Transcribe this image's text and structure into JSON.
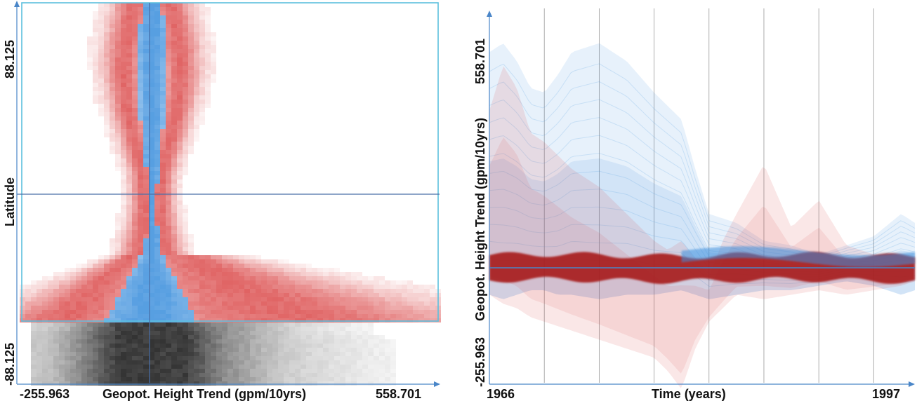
{
  "chart_data": [
    {
      "type": "heatmap",
      "title": "",
      "xlabel": "Geopot. Height Trend (gpm/10yrs)",
      "ylabel": "Latitude",
      "xlim": [
        -255.963,
        558.701
      ],
      "ylim": [
        -88.125,
        88.125
      ],
      "x_tick_labels": [
        "-255.963",
        "558.701"
      ],
      "y_tick_labels": [
        "-88.125",
        "88.125"
      ],
      "reference_line_latitude": 0,
      "reference_line_trend": 0,
      "selection_latitude_range": [
        -88.125,
        88.125
      ],
      "colors": {
        "selected_a": "#d83c3c",
        "selected_b": "#3a8edc",
        "context": "#555555",
        "frame": "#5bc0de",
        "axis": "#4a86c8"
      }
    },
    {
      "type": "line",
      "title": "",
      "xlabel": "Time (years)",
      "ylabel": "Geopot. Height Trend (gpm/10yrs)",
      "xlim": [
        1966,
        1997
      ],
      "ylim": [
        -255.963,
        558.701
      ],
      "x_tick_labels": [
        "1966",
        "1997"
      ],
      "y_tick_labels": [
        "-255.963",
        "558.701"
      ],
      "vertical_grid_years": [
        1966,
        1970,
        1974,
        1978,
        1982,
        1986,
        1990,
        1994
      ],
      "reference_line_value": 0,
      "series": [
        {
          "color": "#3a8edc",
          "x": [
            1966,
            1967,
            1968,
            1969,
            1970,
            1971,
            1972,
            1974,
            1976,
            1978,
            1980,
            1981,
            1982,
            1984,
            1986,
            1988,
            1990,
            1992,
            1994,
            1996,
            1997
          ],
          "upper": [
            480,
            500,
            460,
            400,
            390,
            430,
            480,
            500,
            460,
            390,
            330,
            220,
            120,
            100,
            60,
            50,
            30,
            50,
            70,
            120,
            100
          ],
          "lower": [
            -60,
            -70,
            -60,
            -50,
            -50,
            -60,
            -60,
            -70,
            -60,
            -60,
            -50,
            -60,
            -70,
            -60,
            -50,
            -50,
            -40,
            -30,
            -40,
            -60,
            -50
          ]
        },
        {
          "color": "#d83c3c",
          "x": [
            1966,
            1967,
            1968,
            1969,
            1970,
            1971,
            1972,
            1974,
            1976,
            1978,
            1979,
            1980,
            1981,
            1982,
            1983,
            1984,
            1986,
            1988,
            1990,
            1992,
            1994,
            1996,
            1997
          ],
          "upper": [
            350,
            450,
            400,
            300,
            280,
            250,
            220,
            180,
            120,
            60,
            40,
            60,
            20,
            -20,
            60,
            120,
            230,
            90,
            150,
            50,
            30,
            20,
            10
          ],
          "lower": [
            -60,
            -80,
            -90,
            -110,
            -120,
            -130,
            -140,
            -160,
            -180,
            -200,
            -230,
            -270,
            -180,
            -120,
            -90,
            -60,
            -70,
            -60,
            -50,
            -60,
            -50,
            -40,
            -30
          ]
        }
      ],
      "colors": {
        "blue": "#3a8edc",
        "red": "#d83c3c",
        "band_core": "#a81c1c",
        "axis": "#4a86c8",
        "grid": "#999999"
      }
    }
  ]
}
